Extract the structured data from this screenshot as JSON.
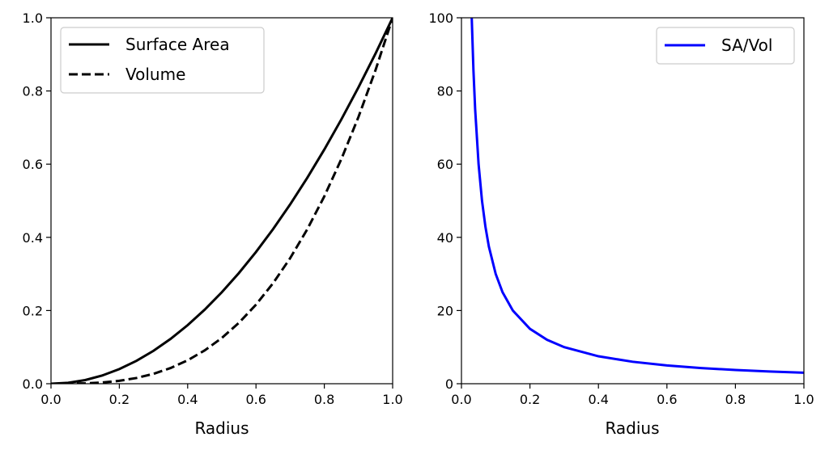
{
  "chart_data": [
    {
      "type": "line",
      "title": "",
      "xlabel": "Radius",
      "ylabel": "",
      "xlim": [
        0,
        1
      ],
      "ylim": [
        0,
        1
      ],
      "xticks": [
        "0.0",
        "0.2",
        "0.4",
        "0.6",
        "0.8",
        "1.0"
      ],
      "yticks": [
        "0.0",
        "0.2",
        "0.4",
        "0.6",
        "0.8",
        "1.0"
      ],
      "legend_placement": "top-left",
      "grid": false,
      "x": [
        0,
        0.05,
        0.1,
        0.15,
        0.2,
        0.25,
        0.3,
        0.35,
        0.4,
        0.45,
        0.5,
        0.55,
        0.6,
        0.65,
        0.7,
        0.75,
        0.8,
        0.85,
        0.9,
        0.95,
        1
      ],
      "series": [
        {
          "name": "Surface Area",
          "style": "solid",
          "color": "#000000",
          "values": [
            0,
            0.0025,
            0.01,
            0.0225,
            0.04,
            0.0625,
            0.09,
            0.1225,
            0.16,
            0.2025,
            0.25,
            0.3025,
            0.36,
            0.4225,
            0.49,
            0.5625,
            0.64,
            0.7225,
            0.81,
            0.9025,
            1
          ]
        },
        {
          "name": "Volume",
          "style": "dashed",
          "color": "#000000",
          "values": [
            0,
            0.000125,
            0.001,
            0.003375,
            0.008,
            0.015625,
            0.027,
            0.042875,
            0.064,
            0.091125,
            0.125,
            0.166375,
            0.216,
            0.274625,
            0.343,
            0.421875,
            0.512,
            0.614125,
            0.729,
            0.857375,
            1
          ]
        }
      ]
    },
    {
      "type": "line",
      "title": "",
      "xlabel": "Radius",
      "ylabel": "",
      "xlim": [
        0,
        1
      ],
      "ylim": [
        0,
        100
      ],
      "xticks": [
        "0.0",
        "0.2",
        "0.4",
        "0.6",
        "0.8",
        "1.0"
      ],
      "yticks": [
        "0",
        "20",
        "40",
        "60",
        "80",
        "100"
      ],
      "legend_placement": "top-right",
      "grid": false,
      "x": [
        0.03,
        0.035,
        0.04,
        0.05,
        0.06,
        0.07,
        0.08,
        0.1,
        0.12,
        0.15,
        0.2,
        0.25,
        0.3,
        0.4,
        0.5,
        0.6,
        0.7,
        0.8,
        0.9,
        1
      ],
      "series": [
        {
          "name": "SA/Vol",
          "style": "solid",
          "color": "#0000ff",
          "values": [
            100,
            85.7,
            75,
            60,
            50,
            42.9,
            37.5,
            30,
            25,
            20,
            15,
            12,
            10,
            7.5,
            6,
            5,
            4.29,
            3.75,
            3.33,
            3
          ]
        }
      ]
    }
  ]
}
